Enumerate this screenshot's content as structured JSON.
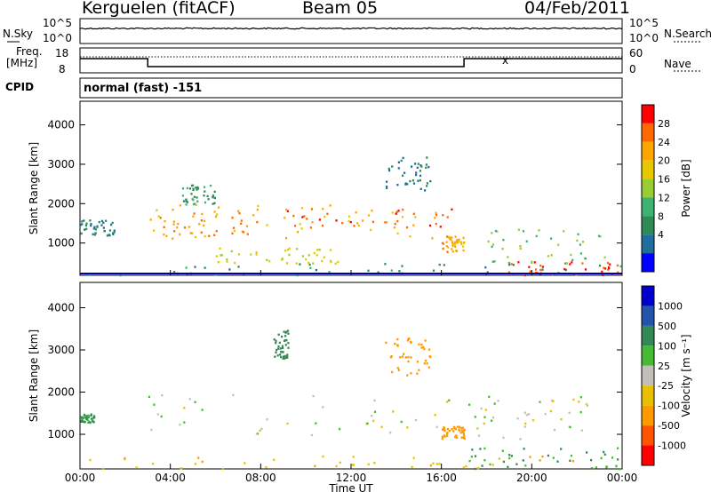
{
  "header": {
    "station": "Kerguelen (fitACF)",
    "beam": "Beam 05",
    "date": "04/Feb/2011"
  },
  "noise_panel": {
    "left_label": "N.Sky",
    "right_label": "N.Search",
    "left_ticks": [
      "10^5",
      "10^0"
    ],
    "right_ticks": [
      "10^5",
      "10^0"
    ]
  },
  "freq_panel": {
    "left_label_1": "Freq.",
    "left_label_2": "[MHz]",
    "right_label": "Nave",
    "left_ticks": [
      "18",
      "8"
    ],
    "right_ticks": [
      "60",
      "0"
    ],
    "marker": "x"
  },
  "cpid": {
    "label": "CPID",
    "value": "normal (fast) -151"
  },
  "power_colorbar": {
    "label": "Power [dB]",
    "ticks": [
      "28",
      "24",
      "20",
      "16",
      "12",
      "8",
      "4"
    ],
    "colors": [
      "#ff0000",
      "#ff6a00",
      "#ffa500",
      "#e8c800",
      "#9acd32",
      "#3cb371",
      "#2e8b57",
      "#1e6e9e",
      "#0000ff"
    ]
  },
  "velocity_colorbar": {
    "label": "Velocity [m s⁻¹]",
    "ticks": [
      "1000",
      "500",
      "100",
      "25",
      "-25",
      "-100",
      "-500",
      "-1000"
    ],
    "colors": [
      "#0000cc",
      "#2255aa",
      "#338855",
      "#44bb33",
      "#c0c0b8",
      "#e8c000",
      "#ff9900",
      "#ff5500",
      "#ff0000"
    ]
  },
  "axes": {
    "ylabel": "Slant Range [km]",
    "xlabel": "Time UT",
    "yticks": [
      "4000",
      "3000",
      "2000",
      "1000"
    ],
    "xticks": [
      "00:00",
      "04:00",
      "08:00",
      "12:00",
      "16:00",
      "20:00",
      "00:00"
    ]
  },
  "chart_data": [
    {
      "type": "heatmap",
      "title": "",
      "quantity": "Power [dB]",
      "xlabel": "Time UT",
      "ylabel": "Slant Range [km]",
      "xlim": [
        "00:00",
        "24:00"
      ],
      "ylim": [
        180,
        4600
      ],
      "clim": [
        0,
        30
      ],
      "blobs": [
        {
          "t0": 3.0,
          "t1": 16.7,
          "r0": 1100,
          "r1": 2000,
          "level": 20
        },
        {
          "t0": 3.0,
          "t1": 8.0,
          "r0": 1200,
          "r1": 1900,
          "level": 24
        },
        {
          "t0": 9.0,
          "t1": 16.5,
          "r0": 1300,
          "r1": 1900,
          "level": 26
        },
        {
          "t0": 6.0,
          "t1": 12.0,
          "r0": 500,
          "r1": 900,
          "level": 18
        },
        {
          "t0": 0.0,
          "t1": 24.0,
          "r0": 200,
          "r1": 500,
          "level": 8
        },
        {
          "t0": 16.0,
          "t1": 17.0,
          "r0": 800,
          "r1": 1200,
          "level": 22
        },
        {
          "t0": 17.5,
          "t1": 24.0,
          "r0": 200,
          "r1": 550,
          "level": 28
        },
        {
          "t0": 18.0,
          "t1": 23.5,
          "r0": 500,
          "r1": 1400,
          "level": 14
        },
        {
          "t0": 0.0,
          "t1": 1.5,
          "r0": 1200,
          "r1": 1600,
          "level": 6
        },
        {
          "t0": 13.5,
          "t1": 15.5,
          "r0": 2300,
          "r1": 3200,
          "level": 5
        },
        {
          "t0": 4.5,
          "t1": 6.0,
          "r0": 2000,
          "r1": 2500,
          "level": 8
        }
      ]
    },
    {
      "type": "heatmap",
      "title": "",
      "quantity": "Velocity [m s⁻¹]",
      "xlabel": "Time UT",
      "ylabel": "Slant Range [km]",
      "xlim": [
        "00:00",
        "24:00"
      ],
      "ylim": [
        180,
        4600
      ],
      "clim": [
        -1000,
        1000
      ],
      "blobs": [
        {
          "t0": 3.0,
          "t1": 16.7,
          "r0": 1000,
          "r1": 2000,
          "value": 0
        },
        {
          "t0": 16.5,
          "t1": 22.5,
          "r0": 900,
          "r1": 2000,
          "value": 0
        },
        {
          "t0": 0.0,
          "t1": 24.0,
          "r0": 200,
          "r1": 500,
          "value": -80
        },
        {
          "t0": 0.0,
          "t1": 0.6,
          "r0": 1300,
          "r1": 1500,
          "value": 120
        },
        {
          "t0": 16.0,
          "t1": 17.0,
          "r0": 900,
          "r1": 1200,
          "value": -400
        },
        {
          "t0": 17.0,
          "t1": 24.0,
          "r0": 200,
          "r1": 700,
          "value": 100
        },
        {
          "t0": 13.5,
          "t1": 15.5,
          "r0": 2400,
          "r1": 3300,
          "value": -200
        },
        {
          "t0": 8.5,
          "t1": 9.2,
          "r0": 2800,
          "r1": 3500,
          "value": 150
        }
      ]
    }
  ]
}
